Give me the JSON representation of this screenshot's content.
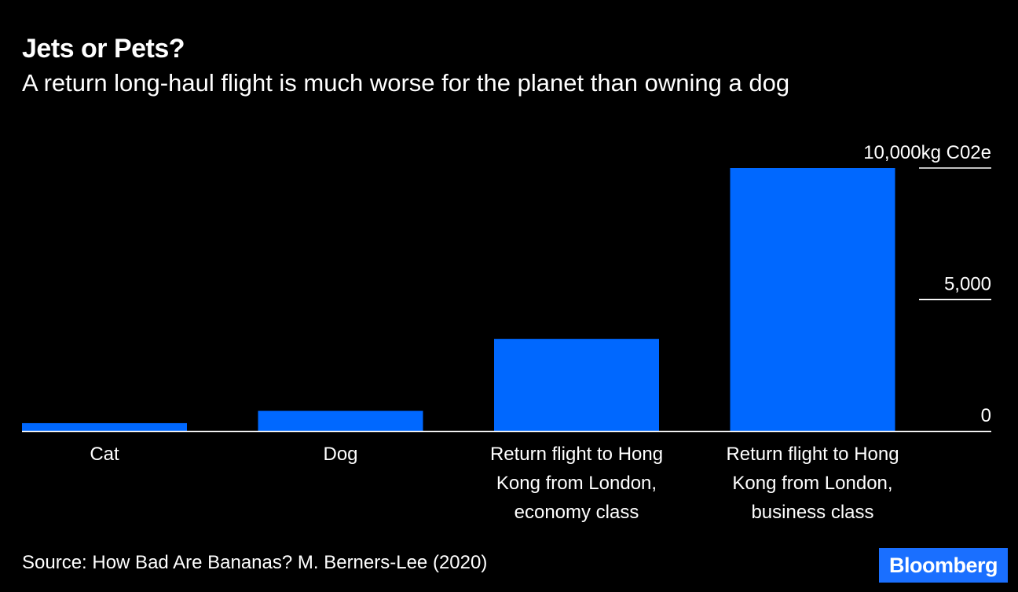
{
  "header": {
    "title": "Jets or Pets?",
    "subtitle": "A return long-haul flight is much worse for the planet than owning a dog"
  },
  "footer": {
    "source": "Source: How Bad Are Bananas? M. Berners-Lee (2020)",
    "logo": "Bloomberg"
  },
  "colors": {
    "background": "#000000",
    "bar": "#0068ff",
    "axis": "#ffffff",
    "text": "#ffffff",
    "logo_bg": "#1a6fff"
  },
  "chart_data": {
    "type": "bar",
    "title": "Jets or Pets?",
    "subtitle": "A return long-haul flight is much worse for the planet than owning a dog",
    "categories": [
      [
        "Cat"
      ],
      [
        "Dog"
      ],
      [
        "Return flight to Hong",
        "Kong from London,",
        "economy class"
      ],
      [
        "Return flight to Hong",
        "Kong from London,",
        "business class"
      ]
    ],
    "values": [
      300,
      770,
      3500,
      10000
    ],
    "unit": "kg C02e",
    "ylim": [
      0,
      10000
    ],
    "yticks": [
      {
        "value": 0,
        "label": "0"
      },
      {
        "value": 5000,
        "label": "5,000"
      },
      {
        "value": 10000,
        "label": "10,000kg C02e"
      }
    ],
    "axis_side": "right",
    "grid": false,
    "xlabel": "",
    "ylabel": ""
  }
}
